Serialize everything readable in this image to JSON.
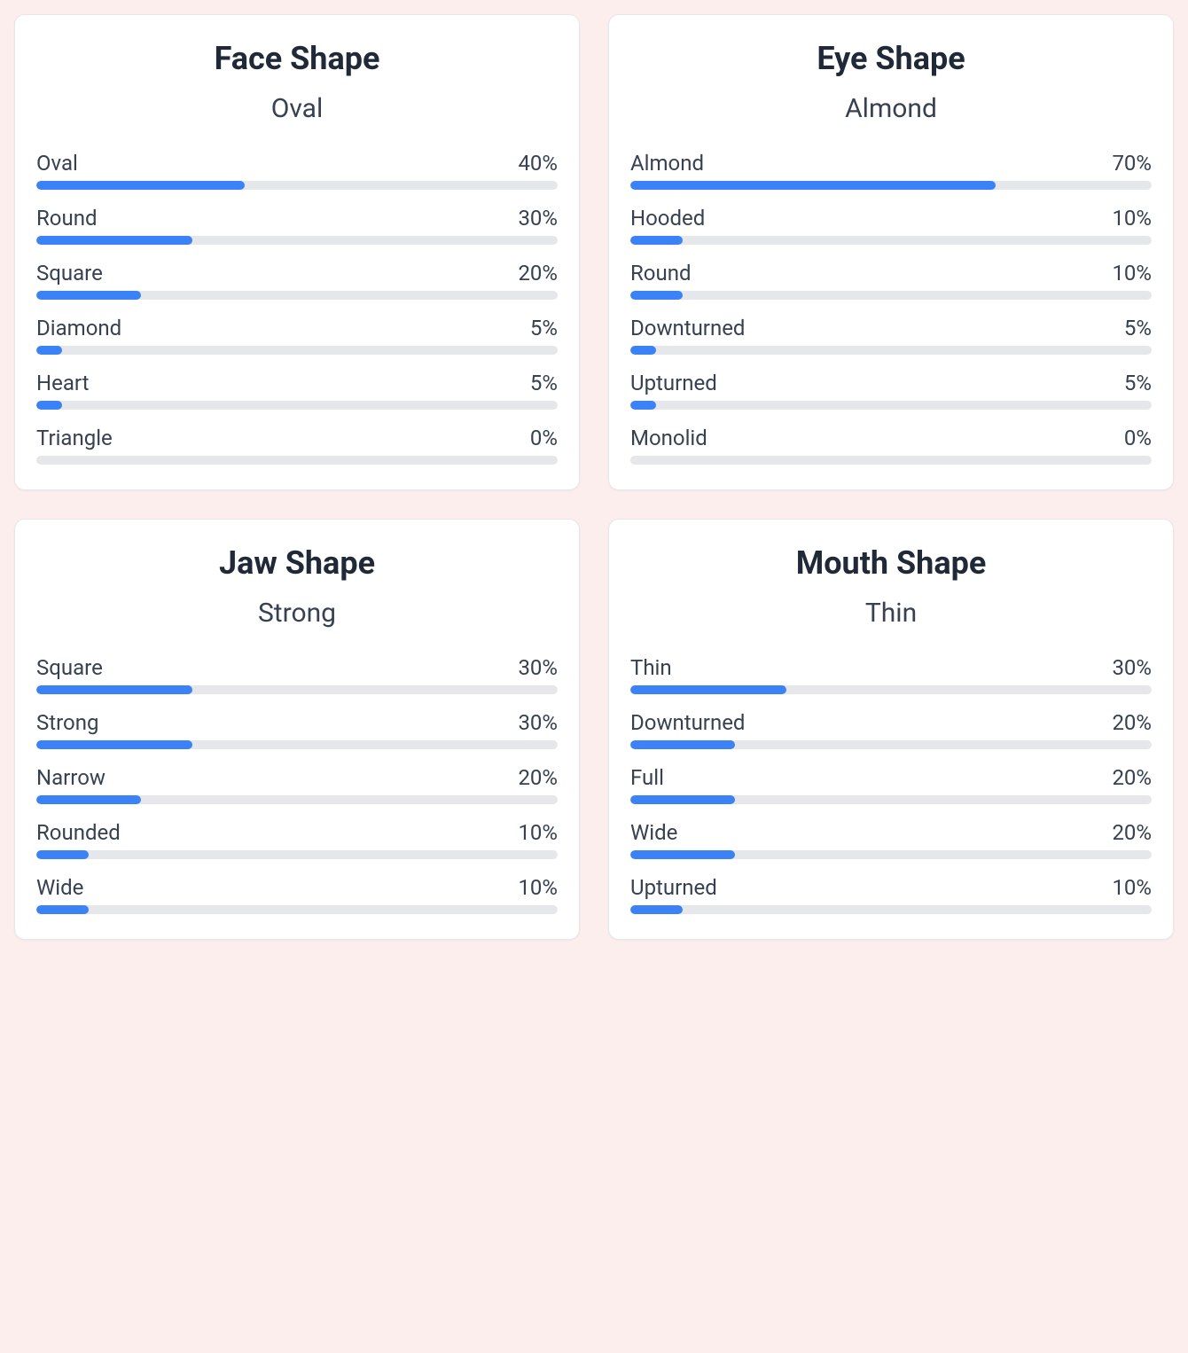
{
  "layout": {
    "background_color": "#fdeeee",
    "card_background": "#ffffff",
    "card_border": "#e5e7eb",
    "card_border_radius": 12,
    "grid_columns": 2,
    "grid_gap": 32
  },
  "typography": {
    "title_fontsize": 36,
    "title_fontweight": 700,
    "title_color": "#1f2937",
    "subtitle_fontsize": 30,
    "subtitle_fontweight": 400,
    "subtitle_color": "#374151",
    "label_fontsize": 24,
    "label_color": "#374151"
  },
  "bar_style": {
    "track_color": "#e5e7eb",
    "fill_color": "#3b82f6",
    "height": 10,
    "border_radius": 999,
    "xlim": [
      0,
      100
    ]
  },
  "cards": [
    {
      "title": "Face Shape",
      "subtitle": "Oval",
      "items": [
        {
          "label": "Oval",
          "value": 40,
          "display": "40%"
        },
        {
          "label": "Round",
          "value": 30,
          "display": "30%"
        },
        {
          "label": "Square",
          "value": 20,
          "display": "20%"
        },
        {
          "label": "Diamond",
          "value": 5,
          "display": "5%"
        },
        {
          "label": "Heart",
          "value": 5,
          "display": "5%"
        },
        {
          "label": "Triangle",
          "value": 0,
          "display": "0%"
        }
      ]
    },
    {
      "title": "Eye Shape",
      "subtitle": "Almond",
      "items": [
        {
          "label": "Almond",
          "value": 70,
          "display": "70%"
        },
        {
          "label": "Hooded",
          "value": 10,
          "display": "10%"
        },
        {
          "label": "Round",
          "value": 10,
          "display": "10%"
        },
        {
          "label": "Downturned",
          "value": 5,
          "display": "5%"
        },
        {
          "label": "Upturned",
          "value": 5,
          "display": "5%"
        },
        {
          "label": "Monolid",
          "value": 0,
          "display": "0%"
        }
      ]
    },
    {
      "title": "Jaw Shape",
      "subtitle": "Strong",
      "items": [
        {
          "label": "Square",
          "value": 30,
          "display": "30%"
        },
        {
          "label": "Strong",
          "value": 30,
          "display": "30%"
        },
        {
          "label": "Narrow",
          "value": 20,
          "display": "20%"
        },
        {
          "label": "Rounded",
          "value": 10,
          "display": "10%"
        },
        {
          "label": "Wide",
          "value": 10,
          "display": "10%"
        }
      ]
    },
    {
      "title": "Mouth Shape",
      "subtitle": "Thin",
      "items": [
        {
          "label": "Thin",
          "value": 30,
          "display": "30%"
        },
        {
          "label": "Downturned",
          "value": 20,
          "display": "20%"
        },
        {
          "label": "Full",
          "value": 20,
          "display": "20%"
        },
        {
          "label": "Wide",
          "value": 20,
          "display": "20%"
        },
        {
          "label": "Upturned",
          "value": 10,
          "display": "10%"
        }
      ]
    }
  ]
}
